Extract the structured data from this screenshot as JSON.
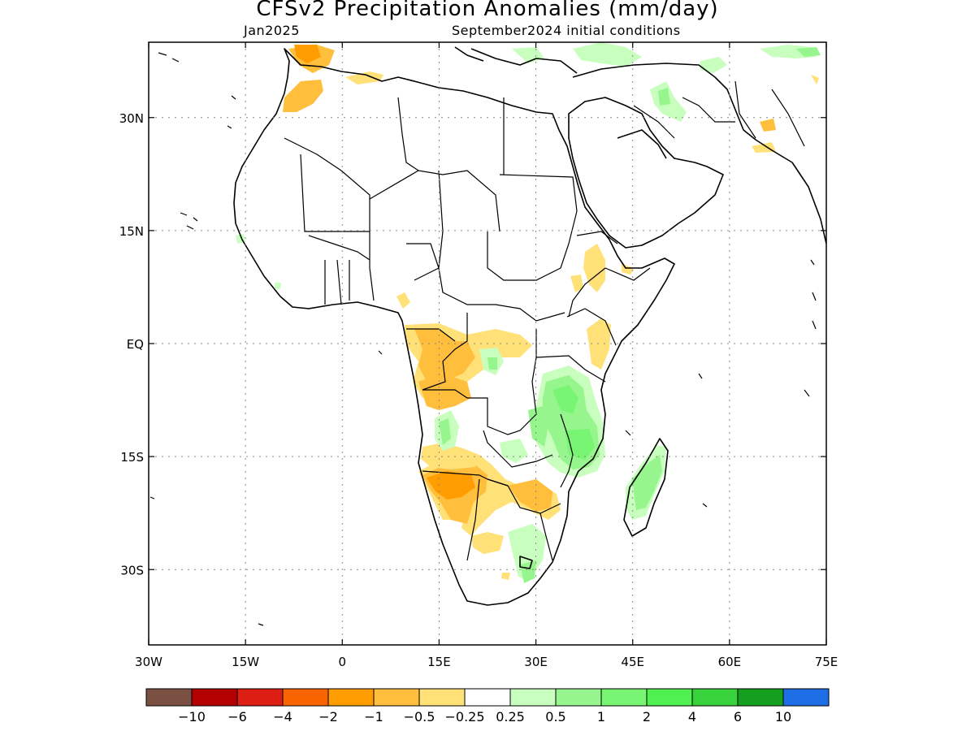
{
  "title": "CFSv2 Precipitation Anomalies (mm/day)",
  "subtitle_left": "Jan2025",
  "subtitle_right": "September2024 initial conditions",
  "axes": {
    "x_ticks": [
      "30W",
      "15W",
      "0",
      "15E",
      "30E",
      "45E",
      "60E",
      "75E"
    ],
    "y_ticks": [
      "30N",
      "15N",
      "EQ",
      "15S",
      "30S"
    ],
    "lon_range": [
      -30,
      75
    ],
    "lat_range": [
      -40,
      40
    ],
    "grid": "dotted"
  },
  "colorbar": {
    "colors": [
      "#7a5042",
      "#b40000",
      "#dc1e14",
      "#fa6400",
      "#ff9c00",
      "#ffbe3c",
      "#ffe178",
      "#ffffff",
      "#c8ffbe",
      "#96f58c",
      "#78f573",
      "#50f050",
      "#37d23c",
      "#14a01e",
      "#1e6ee6"
    ],
    "labels": [
      "−10",
      "−6",
      "−4",
      "−2",
      "−1",
      "−0.5",
      "−0.25",
      "0.25",
      "0.5",
      "1",
      "2",
      "4",
      "6",
      "10"
    ]
  },
  "chart_data": {
    "type": "map",
    "region": "Africa",
    "variable": "Precipitation anomaly",
    "units": "mm/day",
    "features": [
      {
        "area": "Southern Angola / Namibia / Botswana",
        "category": "-1 to -0.25",
        "sign": "dry"
      },
      {
        "area": "Gabon / Congo / DR Congo",
        "category": "-1 to -0.25",
        "sign": "dry"
      },
      {
        "area": "Southern Morocco / Atlas",
        "category": "-1 to -0.25",
        "sign": "dry"
      },
      {
        "area": "Ethiopia / Kenya",
        "category": "-0.5 to -0.25",
        "sign": "dry"
      },
      {
        "area": "Tanzania / Malawi / Mozambique",
        "category": "0.25 to 2",
        "sign": "wet"
      },
      {
        "area": "Madagascar",
        "category": "0.25 to 1",
        "sign": "wet"
      },
      {
        "area": "Middle East / Iran",
        "category": "0.25 to 1",
        "sign": "wet"
      },
      {
        "area": "Angola interior",
        "category": "0.25 to 2",
        "sign": "wet"
      },
      {
        "area": "Eastern South Africa",
        "category": "0.25 to 1",
        "sign": "wet"
      }
    ]
  }
}
